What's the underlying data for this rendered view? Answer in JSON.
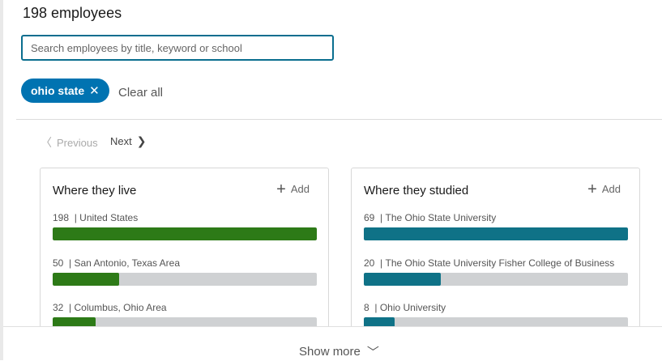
{
  "header": {
    "title": "198 employees"
  },
  "search": {
    "placeholder": "Search employees by title, keyword or school",
    "value": ""
  },
  "filters": {
    "chip_label": "ohio state",
    "chip_remove_icon": "✕",
    "clear_all_label": "Clear all"
  },
  "pagination": {
    "previous_label": "Previous",
    "next_label": "Next",
    "previous_icon": "〈",
    "next_icon": "❯"
  },
  "cards": [
    {
      "title": "Where they live",
      "add_label": "Add",
      "add_icon": "+",
      "bar_color": "#2d7a17",
      "rows": [
        {
          "count": "198",
          "label": "United States",
          "fraction": 1.0
        },
        {
          "count": "50",
          "label": "San Antonio, Texas Area",
          "fraction": 0.252
        },
        {
          "count": "32",
          "label": "Columbus, Ohio Area",
          "fraction": 0.162
        }
      ]
    },
    {
      "title": "Where they studied",
      "add_label": "Add",
      "add_icon": "+",
      "bar_color": "#0f7287",
      "rows": [
        {
          "count": "69",
          "label": "The Ohio State University",
          "fraction": 1.0
        },
        {
          "count": "20",
          "label": "The Ohio State University Fisher College of Business",
          "fraction": 0.29
        },
        {
          "count": "8",
          "label": "Ohio University",
          "fraction": 0.116
        }
      ]
    }
  ],
  "footer": {
    "show_more_label": "Show more",
    "show_more_icon": "﹀"
  }
}
